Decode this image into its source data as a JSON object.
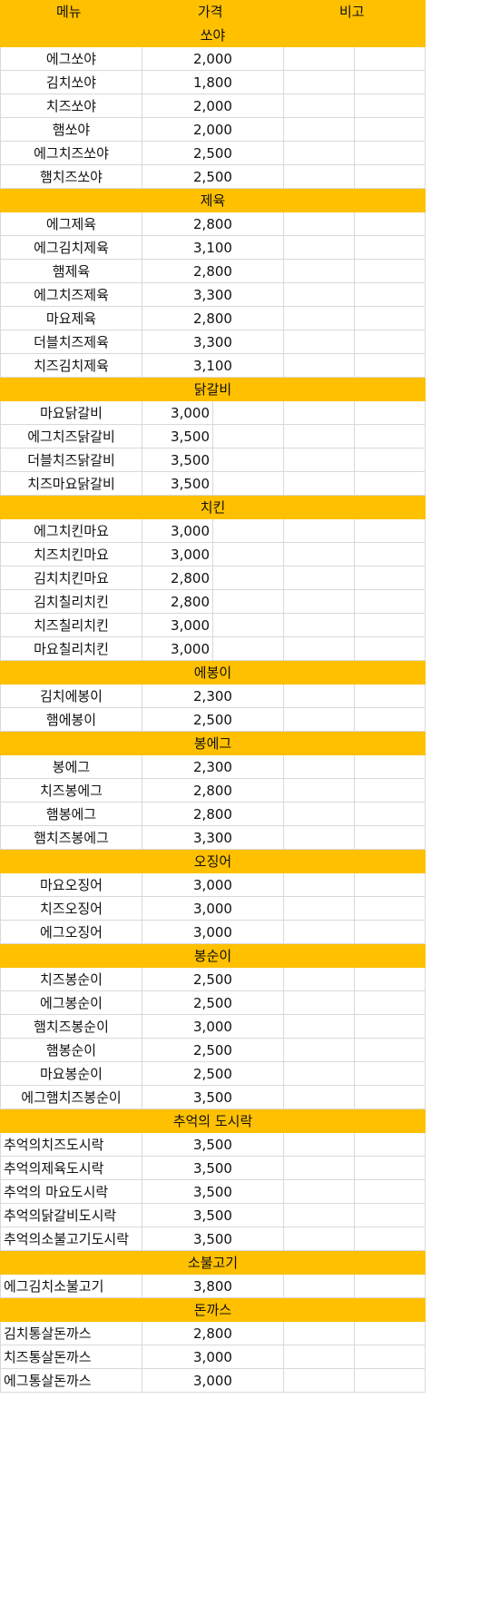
{
  "header": {
    "menu": "메뉴",
    "price": "가격",
    "note": "비고"
  },
  "sections": [
    {
      "title": "쏘야",
      "layout": "A",
      "items": [
        {
          "name": "에그쏘야",
          "price": "2,000"
        },
        {
          "name": "김치쏘야",
          "price": "1,800"
        },
        {
          "name": "치즈쏘야",
          "price": "2,000"
        },
        {
          "name": "햄쏘야",
          "price": "2,000"
        },
        {
          "name": "에그치즈쏘야",
          "price": "2,500"
        },
        {
          "name": "햄치즈쏘야",
          "price": "2,500"
        }
      ]
    },
    {
      "title": "제육",
      "layout": "A",
      "items": [
        {
          "name": "에그제육",
          "price": "2,800"
        },
        {
          "name": "에그김치제육",
          "price": "3,100"
        },
        {
          "name": "햄제육",
          "price": "2,800"
        },
        {
          "name": "에그치즈제육",
          "price": "3,300"
        },
        {
          "name": "마요제육",
          "price": "2,800"
        },
        {
          "name": "더블치즈제육",
          "price": "3,300"
        },
        {
          "name": "치즈김치제육",
          "price": "3,100"
        }
      ]
    },
    {
      "title": "닭갈비",
      "layout": "B",
      "items": [
        {
          "name": "마요닭갈비",
          "price": "3,000"
        },
        {
          "name": "에그치즈닭갈비",
          "price": "3,500"
        },
        {
          "name": "더블치즈닭갈비",
          "price": "3,500"
        },
        {
          "name": "치즈마요닭갈비",
          "price": "3,500"
        }
      ]
    },
    {
      "title": "치킨",
      "layout": "B",
      "items": [
        {
          "name": "에그치킨마요",
          "price": "3,000"
        },
        {
          "name": "치즈치킨마요",
          "price": "3,000"
        },
        {
          "name": "김치치킨마요",
          "price": "2,800"
        },
        {
          "name": "김치칠리치킨",
          "price": "2,800"
        },
        {
          "name": "치즈칠리치킨",
          "price": "3,000"
        },
        {
          "name": "마요칠리치킨",
          "price": "3,000"
        }
      ]
    },
    {
      "title": "에봉이",
      "layout": "A",
      "items": [
        {
          "name": "김치에봉이",
          "price": "2,300"
        },
        {
          "name": "햄에봉이",
          "price": "2,500"
        }
      ]
    },
    {
      "title": "봉에그",
      "layout": "A",
      "items": [
        {
          "name": "봉에그",
          "price": "2,300"
        },
        {
          "name": "치즈봉에그",
          "price": "2,800"
        },
        {
          "name": "햄봉에그",
          "price": "2,800"
        },
        {
          "name": "햄치즈봉에그",
          "price": "3,300"
        }
      ]
    },
    {
      "title": "오징어",
      "layout": "A",
      "items": [
        {
          "name": "마요오징어",
          "price": "3,000"
        },
        {
          "name": "치즈오징어",
          "price": "3,000"
        },
        {
          "name": "에그오징어",
          "price": "3,000"
        }
      ]
    },
    {
      "title": "봉순이",
      "layout": "A",
      "items": [
        {
          "name": "치즈봉순이",
          "price": "2,500"
        },
        {
          "name": "에그봉순이",
          "price": "2,500"
        },
        {
          "name": "햄치즈봉순이",
          "price": "3,000"
        },
        {
          "name": "햄봉순이",
          "price": "2,500"
        },
        {
          "name": "마요봉순이",
          "price": "2,500"
        },
        {
          "name": "에그햄치즈봉순이",
          "price": "3,500"
        }
      ]
    },
    {
      "title": "추억의 도시락",
      "layout": "C",
      "items": [
        {
          "name": "추억의치즈도시락",
          "price": "3,500"
        },
        {
          "name": "추억의제육도시락",
          "price": "3,500"
        },
        {
          "name": "추억의 마요도시락",
          "price": "3,500"
        },
        {
          "name": "추억의닭갈비도시락",
          "price": "3,500"
        },
        {
          "name": "추억의소불고기도시락",
          "price": "3,500"
        }
      ]
    },
    {
      "title": "소불고기",
      "layout": "C",
      "items": [
        {
          "name": "에그김치소불고기",
          "price": "3,800"
        }
      ]
    },
    {
      "title": "돈까스",
      "layout": "C",
      "items": [
        {
          "name": "김치통살돈까스",
          "price": "2,800"
        },
        {
          "name": "치즈통살돈까스",
          "price": "3,000"
        },
        {
          "name": "에그통살돈까스",
          "price": "3,000"
        }
      ]
    }
  ]
}
